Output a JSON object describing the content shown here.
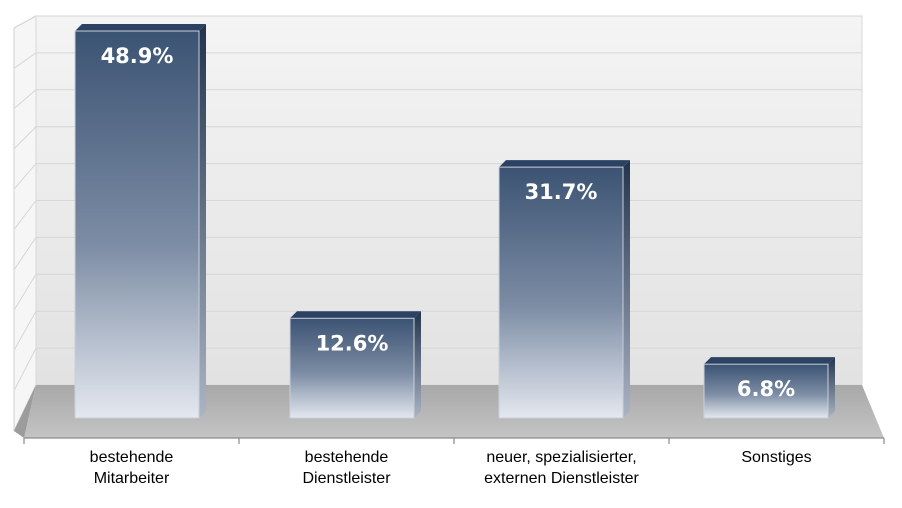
{
  "chart_data": {
    "type": "bar",
    "categories": [
      "bestehende\nMitarbeiter",
      "bestehende\nDienstleister",
      "neuer, spezialisierter,\nexternen Dienstleister",
      "Sonstiges"
    ],
    "values": [
      48.9,
      12.6,
      31.7,
      6.8
    ],
    "value_labels": [
      "48.9%",
      "12.6%",
      "31.7%",
      "6.8%"
    ],
    "ylim": [
      0,
      50
    ],
    "grid": true,
    "legend": "none",
    "style": "3d-column",
    "title": "",
    "xlabel": "",
    "ylabel": ""
  },
  "colors": {
    "bar_top": "#3b5373",
    "bar_mid": "#7c8ca4",
    "bar_bottom": "#e4e8ef",
    "back_wall": "#eeeeee",
    "side_wall": "#f6f6f6",
    "floor": "#b9b9b9",
    "grid": "#d6d6d6"
  }
}
